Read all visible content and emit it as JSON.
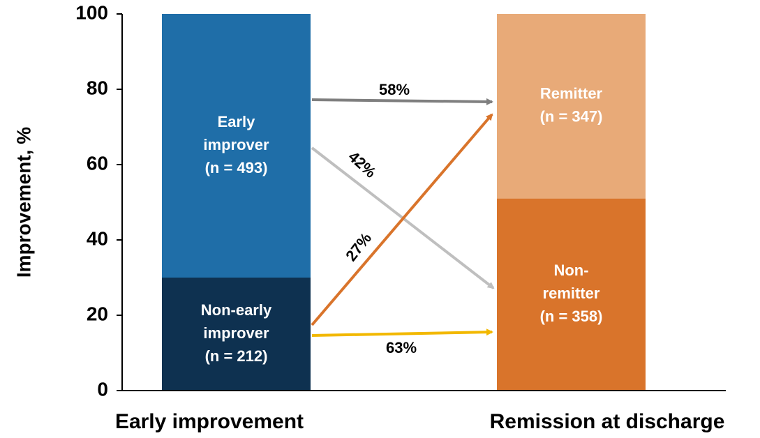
{
  "chart_data": {
    "type": "stacked_bar",
    "y_axis_label": "Improvement, %",
    "categories": [
      "Early improvement",
      "Remission at discharge"
    ],
    "series": [
      {
        "values": [
          30,
          51
        ],
        "colors": [
          "#0e3150",
          "#d9742b"
        ],
        "segment_labels": [
          [
            "Non-early",
            "improver",
            "(n = 212)"
          ],
          [
            "Non-",
            "remitter",
            "(n = 358)"
          ]
        ]
      },
      {
        "values": [
          70,
          49
        ],
        "colors": [
          "#1f6ea8",
          "#e8aa78"
        ],
        "segment_labels": [
          [
            "Early",
            "improver",
            "(n = 493)"
          ],
          [
            "Remitter",
            "(n = 347)"
          ]
        ]
      }
    ],
    "ylim": [
      0,
      100
    ],
    "yticks": [
      0,
      20,
      40,
      60,
      80,
      100
    ],
    "annotations": [
      "58%",
      "42%",
      "27%",
      "63%"
    ]
  }
}
